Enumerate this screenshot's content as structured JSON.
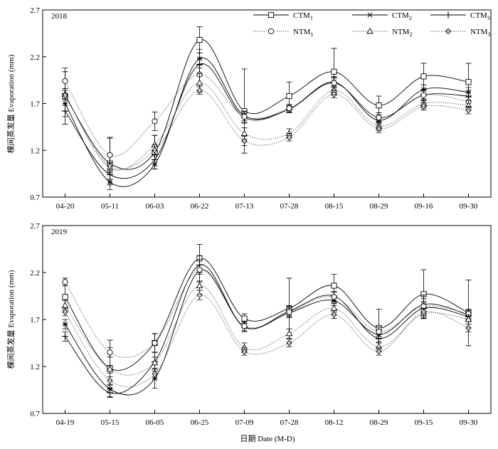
{
  "xlabel": "日期 Date (M-D)",
  "ylabel": "棵间蒸发量 Evaporation (mm)",
  "legend": [
    {
      "key": "CTM1",
      "base": "CTM",
      "sub": "1",
      "style": "solid",
      "marker": "square"
    },
    {
      "key": "CTM2",
      "base": "CTM",
      "sub": "2",
      "style": "solid",
      "marker": "asterisk"
    },
    {
      "key": "CTM3",
      "base": "CTM",
      "sub": "3",
      "style": "solid",
      "marker": "plus"
    },
    {
      "key": "NTM1",
      "base": "NTM",
      "sub": "1",
      "style": "dotted",
      "marker": "circle"
    },
    {
      "key": "NTM2",
      "base": "NTM",
      "sub": "2",
      "style": "dotted",
      "marker": "triangle"
    },
    {
      "key": "NTM3",
      "base": "NTM",
      "sub": "3",
      "style": "dotted",
      "marker": "diamond"
    }
  ],
  "chart_data": [
    {
      "type": "line",
      "year_label": "2018",
      "yticks": [
        "0.7",
        "1.2",
        "1.7",
        "2.2",
        "2.7"
      ],
      "ylim": [
        0.7,
        2.7
      ],
      "categories": [
        "04-20",
        "05-11",
        "06-03",
        "06-22",
        "07-13",
        "07-28",
        "08-15",
        "08-29",
        "09-16",
        "09-30"
      ],
      "series": [
        {
          "name": "CTM1",
          "values": [
            1.78,
            1.06,
            1.18,
            2.38,
            1.62,
            1.78,
            2.04,
            1.68,
            1.99,
            1.93
          ],
          "errors": [
            0.3,
            0.28,
            0.18,
            0.14,
            0.45,
            0.15,
            0.25,
            0.1,
            0.14,
            0.2
          ]
        },
        {
          "name": "CTM2",
          "values": [
            1.7,
            0.86,
            1.05,
            2.18,
            1.57,
            1.64,
            1.93,
            1.52,
            1.85,
            1.82
          ],
          "errors": [
            0.08,
            0.03,
            0.05,
            0.1,
            0.05,
            0.03,
            0.05,
            0.03,
            0.05,
            0.05
          ]
        },
        {
          "name": "CTM3",
          "values": [
            1.62,
            0.94,
            1.1,
            2.12,
            1.55,
            1.64,
            1.92,
            1.55,
            1.79,
            1.78
          ],
          "errors": [
            0.06,
            0.05,
            0.1,
            0.12,
            0.06,
            0.04,
            0.07,
            0.05,
            0.06,
            0.06
          ]
        },
        {
          "name": "NTM1",
          "values": [
            1.94,
            1.15,
            1.51,
            2.01,
            1.56,
            1.65,
            1.92,
            1.55,
            1.79,
            1.72
          ],
          "errors": [
            0.1,
            0.18,
            0.1,
            0.1,
            0.06,
            0.04,
            0.05,
            0.05,
            0.05,
            0.05
          ]
        },
        {
          "name": "NTM2",
          "values": [
            1.8,
            1.01,
            1.26,
            1.92,
            1.38,
            1.38,
            1.84,
            1.46,
            1.7,
            1.68
          ],
          "errors": [
            0.06,
            0.05,
            0.1,
            0.1,
            0.06,
            0.05,
            0.05,
            0.05,
            0.05,
            0.05
          ]
        },
        {
          "name": "NTM3",
          "values": [
            1.79,
            1.03,
            1.2,
            1.84,
            1.3,
            1.34,
            1.8,
            1.43,
            1.67,
            1.63
          ],
          "errors": [
            0.05,
            0.04,
            0.06,
            0.04,
            0.05,
            0.04,
            0.04,
            0.04,
            0.04,
            0.04
          ]
        }
      ]
    },
    {
      "type": "line",
      "year_label": "2019",
      "yticks": [
        "0.7",
        "1.2",
        "1.7",
        "2.2",
        "2.7"
      ],
      "ylim": [
        0.7,
        2.7
      ],
      "categories": [
        "04-19",
        "05-15",
        "06-05",
        "06-25",
        "07-09",
        "07-28",
        "08-12",
        "08-29",
        "09-15",
        "09-30"
      ],
      "series": [
        {
          "name": "CTM1",
          "values": [
            1.94,
            1.18,
            1.45,
            2.35,
            1.71,
            1.82,
            2.06,
            1.61,
            1.97,
            1.77
          ],
          "errors": [
            0.12,
            0.3,
            0.1,
            0.15,
            0.05,
            0.32,
            0.12,
            0.2,
            0.26,
            0.35
          ]
        },
        {
          "name": "CTM2",
          "values": [
            1.65,
            0.96,
            1.07,
            2.22,
            1.62,
            1.77,
            1.9,
            1.54,
            1.86,
            1.75
          ],
          "errors": [
            0.05,
            0.04,
            0.1,
            0.12,
            0.05,
            0.05,
            0.05,
            0.05,
            0.1,
            0.05
          ]
        },
        {
          "name": "CTM3",
          "values": [
            1.52,
            0.92,
            1.25,
            2.28,
            1.62,
            1.79,
            1.95,
            1.5,
            1.82,
            1.73
          ],
          "errors": [
            0.05,
            0.05,
            0.1,
            0.1,
            0.05,
            0.05,
            0.05,
            0.05,
            0.1,
            0.05
          ]
        },
        {
          "name": "NTM1",
          "values": [
            2.1,
            1.35,
            1.45,
            2.23,
            1.63,
            1.78,
            1.94,
            1.57,
            1.84,
            1.76
          ],
          "errors": [
            0.04,
            0.05,
            0.1,
            0.05,
            0.05,
            0.05,
            0.05,
            0.05,
            0.05,
            0.05
          ]
        },
        {
          "name": "NTM2",
          "values": [
            1.85,
            1.17,
            1.24,
            2.06,
            1.4,
            1.55,
            1.82,
            1.41,
            1.76,
            1.7
          ],
          "errors": [
            0.05,
            0.04,
            0.06,
            0.05,
            0.05,
            0.05,
            0.05,
            0.05,
            0.05,
            0.05
          ]
        },
        {
          "name": "NTM3",
          "values": [
            1.78,
            1.05,
            1.12,
            1.96,
            1.36,
            1.45,
            1.75,
            1.36,
            1.78,
            1.61
          ],
          "errors": [
            0.04,
            0.04,
            0.05,
            0.05,
            0.04,
            0.04,
            0.04,
            0.04,
            0.04,
            0.04
          ]
        }
      ]
    }
  ]
}
